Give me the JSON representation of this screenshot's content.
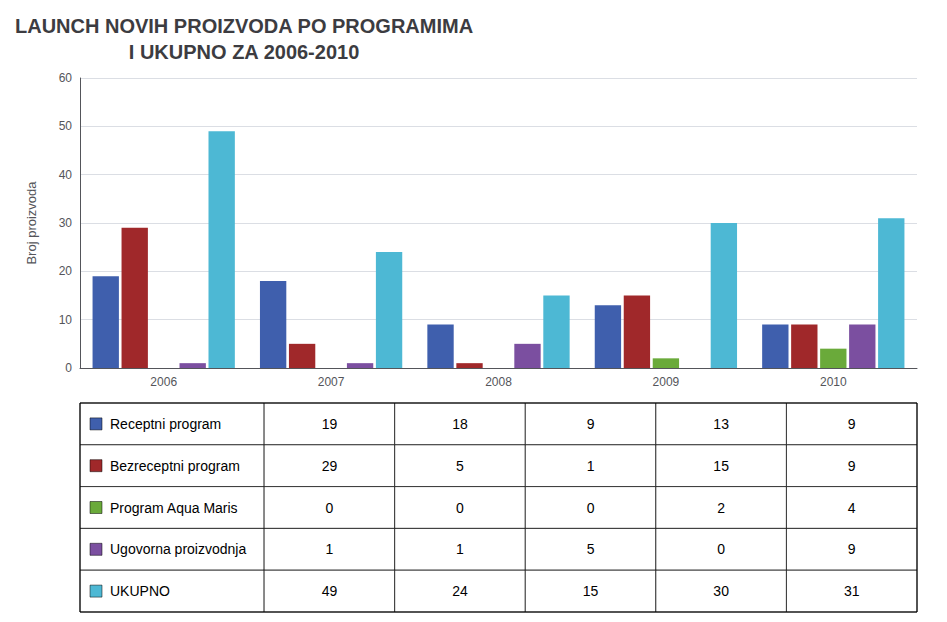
{
  "chart_data": {
    "type": "bar",
    "title": "LAUNCH NOVIH PROIZVODA PO PROGRAMIMA\nI UKUPNO ZA 2006-2010",
    "ylabel": "Broj proizvoda",
    "categories": [
      "2006",
      "2007",
      "2008",
      "2009",
      "2010"
    ],
    "series": [
      {
        "name": "Receptni program",
        "color": "#3f5fad",
        "values": [
          19,
          18,
          9,
          13,
          9
        ]
      },
      {
        "name": "Bezreceptni program",
        "color": "#a0282a",
        "values": [
          29,
          5,
          1,
          15,
          9
        ]
      },
      {
        "name": "Program Aqua Maris",
        "color": "#6aaa3a",
        "values": [
          0,
          0,
          0,
          2,
          4
        ]
      },
      {
        "name": "Ugovorna proizvodnja",
        "color": "#7b4fa0",
        "values": [
          1,
          1,
          5,
          0,
          9
        ]
      },
      {
        "name": "UKUPNO",
        "color": "#4db8d4",
        "values": [
          49,
          24,
          15,
          30,
          31
        ]
      }
    ],
    "ylim": [
      0,
      60
    ],
    "yticks": [
      0,
      10,
      20,
      30,
      40,
      50,
      60
    ],
    "grid": true
  }
}
